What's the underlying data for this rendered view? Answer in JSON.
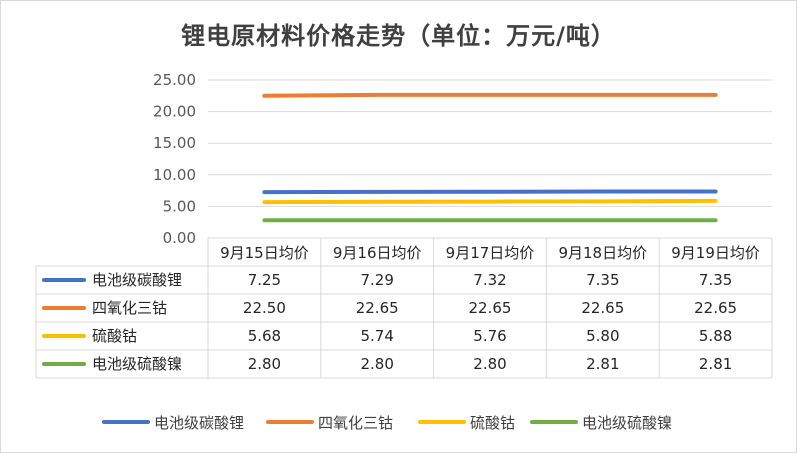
{
  "chart_data": {
    "type": "line",
    "title": "锂电原材料价格走势（单位：万元/吨）",
    "categories": [
      "9月15日均价",
      "9月16日均价",
      "9月17日均价",
      "9月18日均价",
      "9月19日均价"
    ],
    "ylim": [
      0,
      25
    ],
    "yticks": [
      "0.00",
      "5.00",
      "10.00",
      "15.00",
      "20.00",
      "25.00"
    ],
    "grid": true,
    "legend": "bottom",
    "series": [
      {
        "name": "电池级碳酸锂",
        "color": "#4472c4",
        "values": [
          7.25,
          7.29,
          7.32,
          7.35,
          7.35
        ],
        "labels": [
          "7.25",
          "7.29",
          "7.32",
          "7.35",
          "7.35"
        ]
      },
      {
        "name": "四氧化三钴",
        "color": "#ed7d31",
        "values": [
          22.5,
          22.65,
          22.65,
          22.65,
          22.65
        ],
        "labels": [
          "22.50",
          "22.65",
          "22.65",
          "22.65",
          "22.65"
        ]
      },
      {
        "name": "硫酸钴",
        "color": "#ffc000",
        "values": [
          5.68,
          5.74,
          5.76,
          5.8,
          5.88
        ],
        "labels": [
          "5.68",
          "5.74",
          "5.76",
          "5.80",
          "5.88"
        ]
      },
      {
        "name": "电池级硫酸镍",
        "color": "#70ad47",
        "values": [
          2.8,
          2.8,
          2.8,
          2.81,
          2.81
        ],
        "labels": [
          "2.80",
          "2.80",
          "2.80",
          "2.81",
          "2.81"
        ]
      }
    ]
  }
}
